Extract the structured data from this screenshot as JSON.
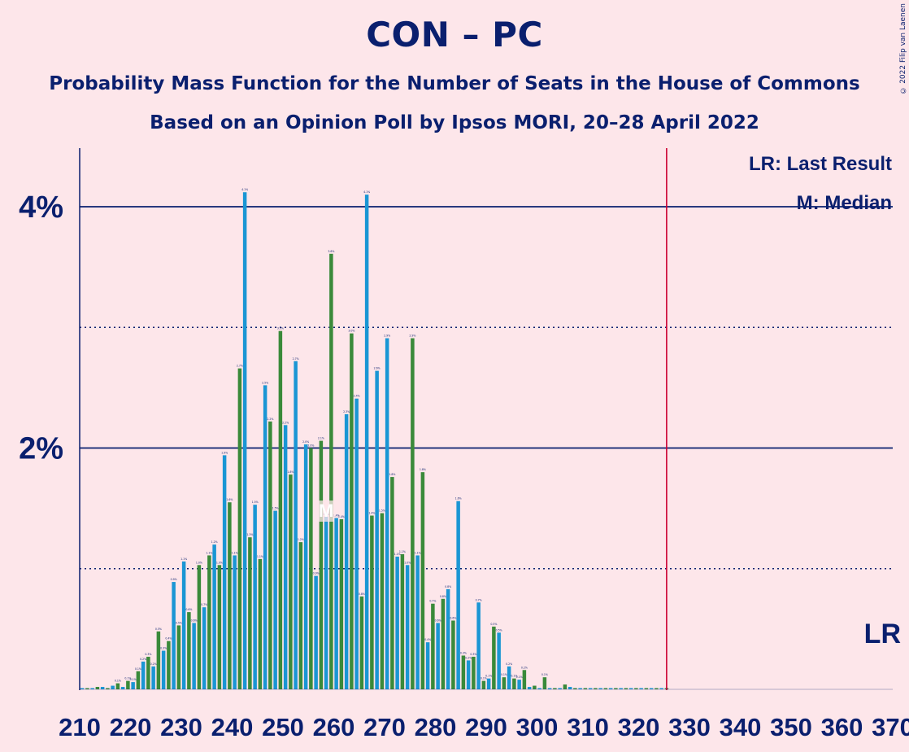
{
  "title": "CON – PC",
  "subtitle1": "Probability Mass Function for the Number of Seats in the House of Commons",
  "subtitle2": "Based on an Opinion Poll by Ipsos MORI, 20–28 April 2022",
  "copyright": "© 2022 Filip van Laenen",
  "legend": {
    "lr": "LR: Last Result",
    "m": "M: Median"
  },
  "lr_label": "LR",
  "median_label": "M",
  "colors": {
    "background": "#fde6ea",
    "text": "#0a1f6e",
    "blue": "#1a96d4",
    "green": "#3a8a3a",
    "last_result_line": "#cc0033"
  },
  "chart_data": {
    "type": "bar",
    "x_start": 210,
    "xlim": [
      210,
      370
    ],
    "x_tick_values": [
      210,
      220,
      230,
      240,
      250,
      260,
      270,
      280,
      290,
      300,
      310,
      320,
      330,
      340,
      350,
      360,
      370
    ],
    "ylim": [
      0,
      4.5
    ],
    "y_ticks": [
      {
        "value": 2,
        "label": "2%"
      },
      {
        "value": 4,
        "label": "4%"
      }
    ],
    "y_minor_dotted": [
      1,
      3
    ],
    "last_result": 325,
    "median": 258,
    "values": [
      0.01,
      0.01,
      0.01,
      0.02,
      0.02,
      0.01,
      0.03,
      0.05,
      0.02,
      0.07,
      0.06,
      0.15,
      0.23,
      0.27,
      0.19,
      0.48,
      0.32,
      0.4,
      0.89,
      0.53,
      1.06,
      0.64,
      0.55,
      1.03,
      0.68,
      1.11,
      1.2,
      1.03,
      1.94,
      1.55,
      1.11,
      2.66,
      4.12,
      1.26,
      1.53,
      1.08,
      2.52,
      2.22,
      1.48,
      2.97,
      2.19,
      1.78,
      2.72,
      1.22,
      2.03,
      2.0,
      0.94,
      2.06,
      1.43,
      3.61,
      1.42,
      1.41,
      2.28,
      2.95,
      2.41,
      0.77,
      4.1,
      1.44,
      2.64,
      1.46,
      2.91,
      1.76,
      1.1,
      1.12,
      1.03,
      2.91,
      1.11,
      1.8,
      0.39,
      0.71,
      0.55,
      0.75,
      0.83,
      0.57,
      1.56,
      0.28,
      0.24,
      0.27,
      0.72,
      0.07,
      0.09,
      0.52,
      0.47,
      0.1,
      0.19,
      0.09,
      0.08,
      0.16,
      0.02,
      0.03,
      0.01,
      0.1,
      0.01,
      0.01,
      0.01,
      0.04,
      0.02,
      0.01,
      0.01,
      0.01,
      0.01,
      0.01,
      0.01,
      0.01,
      0.01,
      0.01,
      0.01,
      0.01,
      0.01,
      0.01,
      0.01,
      0.01,
      0.01,
      0.01,
      0.01,
      0.01
    ]
  }
}
